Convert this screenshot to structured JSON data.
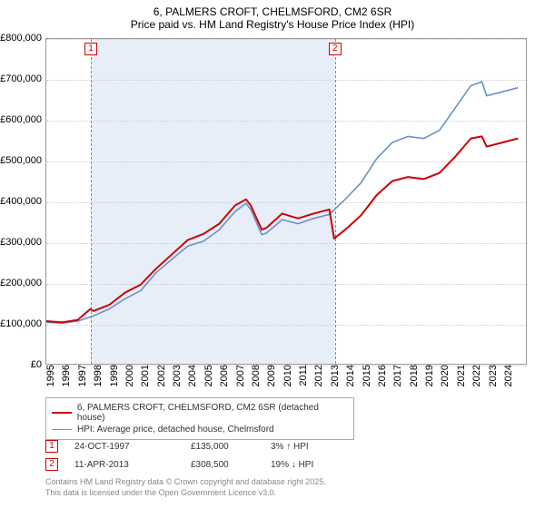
{
  "title_line1": "6, PALMERS CROFT, CHELMSFORD, CM2 6SR",
  "title_line2": "Price paid vs. HM Land Registry's House Price Index (HPI)",
  "chart": {
    "type": "line",
    "background_color": "#ffffff",
    "grid_color": "#cccccc",
    "border_color": "#999999",
    "shade_color": "#e8eef7",
    "marker_line_color": "#e06666",
    "x_range": [
      1995,
      2025.5
    ],
    "y_range": [
      0,
      800000
    ],
    "y_ticks": [
      0,
      100000,
      200000,
      300000,
      400000,
      500000,
      600000,
      700000,
      800000
    ],
    "y_tick_labels": [
      "£0",
      "£100,000",
      "£200,000",
      "£300,000",
      "£400,000",
      "£500,000",
      "£600,000",
      "£700,000",
      "£800,000"
    ],
    "x_ticks": [
      1995,
      1996,
      1997,
      1998,
      1999,
      2000,
      2001,
      2002,
      2003,
      2004,
      2005,
      2006,
      2007,
      2008,
      2009,
      2010,
      2011,
      2012,
      2013,
      2014,
      2015,
      2016,
      2017,
      2018,
      2019,
      2020,
      2021,
      2022,
      2023,
      2024
    ],
    "shade_start": 1997.82,
    "shade_end": 2013.28,
    "markers": [
      {
        "num": "1",
        "x": 1997.82
      },
      {
        "num": "2",
        "x": 2013.28
      }
    ],
    "series": [
      {
        "name": "price_paid",
        "label": "6, PALMERS CROFT, CHELMSFORD, CM2 6SR (detached house)",
        "color": "#cc0000",
        "line_width": 2,
        "points": [
          [
            1995,
            105000
          ],
          [
            1996,
            102000
          ],
          [
            1997,
            108000
          ],
          [
            1997.8,
            135000
          ],
          [
            1998,
            130000
          ],
          [
            1999,
            145000
          ],
          [
            2000,
            175000
          ],
          [
            2001,
            195000
          ],
          [
            2002,
            235000
          ],
          [
            2003,
            270000
          ],
          [
            2004,
            305000
          ],
          [
            2005,
            320000
          ],
          [
            2006,
            345000
          ],
          [
            2007,
            390000
          ],
          [
            2007.7,
            405000
          ],
          [
            2008,
            390000
          ],
          [
            2008.7,
            330000
          ],
          [
            2009,
            335000
          ],
          [
            2010,
            370000
          ],
          [
            2011,
            358000
          ],
          [
            2012,
            370000
          ],
          [
            2013,
            380000
          ],
          [
            2013.3,
            308500
          ],
          [
            2014,
            330000
          ],
          [
            2015,
            365000
          ],
          [
            2016,
            415000
          ],
          [
            2017,
            450000
          ],
          [
            2018,
            460000
          ],
          [
            2019,
            455000
          ],
          [
            2020,
            470000
          ],
          [
            2021,
            510000
          ],
          [
            2022,
            555000
          ],
          [
            2022.7,
            560000
          ],
          [
            2023,
            535000
          ],
          [
            2024,
            545000
          ],
          [
            2025,
            555000
          ]
        ]
      },
      {
        "name": "hpi",
        "label": "HPI: Average price, detached house, Chelmsford",
        "color": "#6b8fc9",
        "line_width": 1.6,
        "points": [
          [
            1995,
            102000
          ],
          [
            1996,
            100000
          ],
          [
            1997,
            105000
          ],
          [
            1998,
            118000
          ],
          [
            1999,
            135000
          ],
          [
            2000,
            160000
          ],
          [
            2001,
            180000
          ],
          [
            2002,
            225000
          ],
          [
            2003,
            258000
          ],
          [
            2004,
            290000
          ],
          [
            2005,
            302000
          ],
          [
            2006,
            330000
          ],
          [
            2007,
            375000
          ],
          [
            2007.7,
            395000
          ],
          [
            2008,
            380000
          ],
          [
            2008.7,
            318000
          ],
          [
            2009,
            322000
          ],
          [
            2010,
            355000
          ],
          [
            2011,
            345000
          ],
          [
            2012,
            358000
          ],
          [
            2013,
            368000
          ],
          [
            2014,
            405000
          ],
          [
            2015,
            445000
          ],
          [
            2016,
            505000
          ],
          [
            2017,
            545000
          ],
          [
            2018,
            560000
          ],
          [
            2019,
            555000
          ],
          [
            2020,
            575000
          ],
          [
            2021,
            630000
          ],
          [
            2022,
            685000
          ],
          [
            2022.7,
            695000
          ],
          [
            2023,
            660000
          ],
          [
            2024,
            670000
          ],
          [
            2025,
            680000
          ]
        ]
      }
    ]
  },
  "legend": {
    "rows": [
      {
        "color": "#cc0000",
        "width": 2,
        "label": "6, PALMERS CROFT, CHELMSFORD, CM2 6SR (detached house)"
      },
      {
        "color": "#6b8fc9",
        "width": 1.6,
        "label": "HPI: Average price, detached house, Chelmsford"
      }
    ]
  },
  "events": [
    {
      "num": "1",
      "date": "24-OCT-1997",
      "price": "£135,000",
      "delta": "3% ↑ HPI"
    },
    {
      "num": "2",
      "date": "11-APR-2013",
      "price": "£308,500",
      "delta": "19% ↓ HPI"
    }
  ],
  "attribution": {
    "line1": "Contains HM Land Registry data © Crown copyright and database right 2025.",
    "line2": "This data is licensed under the Open Government Licence v3.0."
  }
}
